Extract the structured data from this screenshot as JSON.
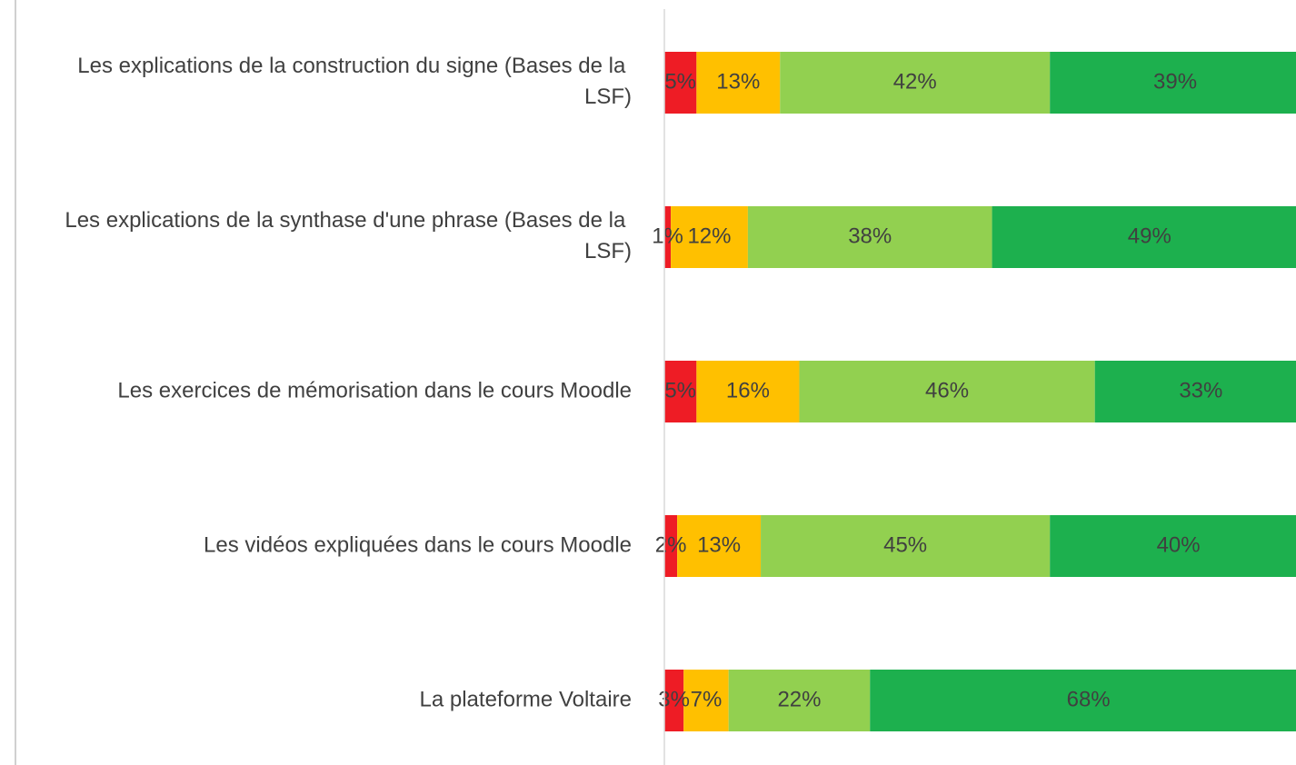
{
  "chart_data": {
    "type": "stacked-bar-horizontal",
    "categories": [
      "Les explications de la construction du signe (Bases de la LSF)",
      "Les explications de la synthase d'une phrase (Bases de la LSF)",
      "Les exercices de mémorisation dans le cours Moodle",
      "Les vidéos expliquées dans le cours Moodle",
      "La plateforme Voltaire"
    ],
    "series": [
      {
        "color": "#ee1c25",
        "values": [
          5,
          1,
          5,
          2,
          3
        ],
        "value_labels": [
          "5%",
          "1%",
          "5%",
          "2%",
          "3%"
        ]
      },
      {
        "color": "#ffc000",
        "values": [
          13,
          12,
          16,
          13,
          7
        ],
        "value_labels": [
          "13%",
          "12%",
          "16%",
          "13%",
          "7%"
        ]
      },
      {
        "color": "#92d050",
        "values": [
          42,
          38,
          46,
          45,
          22
        ],
        "value_labels": [
          "42%",
          "38%",
          "46%",
          "45%",
          "22%"
        ]
      },
      {
        "color": "#1db04e",
        "values": [
          39,
          49,
          33,
          40,
          68
        ],
        "value_labels": [
          "39%",
          "49%",
          "33%",
          "40%",
          "68%"
        ]
      }
    ],
    "xlim": [
      0,
      100
    ]
  }
}
